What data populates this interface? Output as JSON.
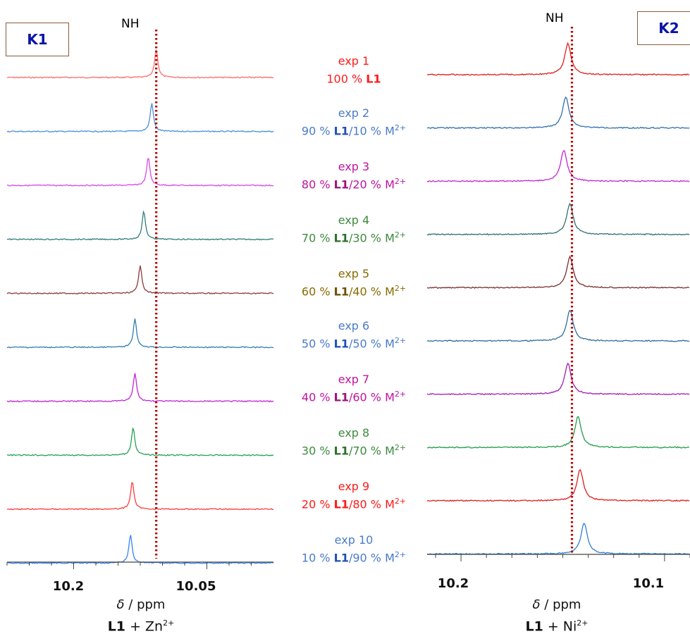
{
  "chart_data": [
    {
      "type": "line",
      "panel": "K1",
      "peak_label": "NH",
      "xlabel_symbol": "δ",
      "xlabel_unit": " / ppm",
      "caption_ligand": "L1",
      "caption_rest": " + Zn",
      "caption_sup": "2+",
      "x_axis_reversed": true,
      "xlim": [
        10.27,
        9.97
      ],
      "xticks": [
        10.2,
        10.05
      ],
      "xtick_labels": [
        "10.2",
        "10.05"
      ],
      "reference_line_x": 10.102,
      "series": [
        {
          "name": "exp 1",
          "peak_x": 10.102,
          "color": "#ff6b6b"
        },
        {
          "name": "exp 2",
          "peak_x": 10.107,
          "color": "#4a90d9"
        },
        {
          "name": "exp 3",
          "peak_x": 10.111,
          "color": "#d946ef"
        },
        {
          "name": "exp 4",
          "peak_x": 10.116,
          "color": "#2f7f7a"
        },
        {
          "name": "exp 5",
          "peak_x": 10.12,
          "color": "#8b3a3a"
        },
        {
          "name": "exp 6",
          "peak_x": 10.126,
          "color": "#2f7fae"
        },
        {
          "name": "exp 7",
          "peak_x": 10.126,
          "color": "#c026d3"
        },
        {
          "name": "exp 8",
          "peak_x": 10.128,
          "color": "#22a352"
        },
        {
          "name": "exp 9",
          "peak_x": 10.129,
          "color": "#ff3b3b"
        },
        {
          "name": "exp 10",
          "peak_x": 10.131,
          "color": "#3b82f6"
        }
      ]
    },
    {
      "type": "line",
      "panel": "K2",
      "peak_label": "NH",
      "xlabel_symbol": "δ",
      "xlabel_unit": " / ppm",
      "caption_ligand": "L1",
      "caption_rest": " + Ni",
      "caption_sup": "2+",
      "x_axis_reversed": true,
      "xlim": [
        10.21,
        10.085
      ],
      "xticks": [
        10.2,
        10.1
      ],
      "xtick_labels": [
        "10.2",
        "10.1"
      ],
      "reference_line_x": 10.143,
      "series": [
        {
          "name": "exp 1",
          "peak_x": 10.145,
          "color": "#e11d1d"
        },
        {
          "name": "exp 2",
          "peak_x": 10.146,
          "color": "#2f6fae"
        },
        {
          "name": "exp 3",
          "peak_x": 10.147,
          "color": "#c026d3"
        },
        {
          "name": "exp 4",
          "peak_x": 10.144,
          "color": "#2f6f73"
        },
        {
          "name": "exp 5",
          "peak_x": 10.144,
          "color": "#7a2e2e"
        },
        {
          "name": "exp 6",
          "peak_x": 10.144,
          "color": "#2f6f9a"
        },
        {
          "name": "exp 7",
          "peak_x": 10.145,
          "color": "#a21caf"
        },
        {
          "name": "exp 8",
          "peak_x": 10.14,
          "color": "#1f9d4a"
        },
        {
          "name": "exp 9",
          "peak_x": 10.139,
          "color": "#e11d1d"
        },
        {
          "name": "exp 10",
          "peak_x": 10.137,
          "color": "#2f7fd6"
        }
      ]
    }
  ],
  "experiments": [
    {
      "title": "exp 1",
      "pre": "100 % ",
      "ligand": "L1",
      "mid": "",
      "metal": "",
      "sup": "",
      "color": "#ff1a1a",
      "ligand_color": "#ff1a1a"
    },
    {
      "title": "exp 2",
      "pre": "90 % ",
      "ligand": "L1",
      "mid": "/10 % ",
      "metal": "M",
      "sup": "2+",
      "color": "#4a7bc8",
      "ligand_color": "#1f4fb5"
    },
    {
      "title": "exp 3",
      "pre": "80 % ",
      "ligand": "L1",
      "mid": "/20 % ",
      "metal": "M",
      "sup": "2+",
      "color": "#c0149e",
      "ligand_color": "#9b1079"
    },
    {
      "title": "exp 4",
      "pre": "70 % ",
      "ligand": "L1",
      "mid": "/30 % ",
      "metal": "M",
      "sup": "2+",
      "color": "#3e8a3e",
      "ligand_color": "#2a6e2a"
    },
    {
      "title": "exp 5",
      "pre": "60 % ",
      "ligand": "L1",
      "mid": "/40 % ",
      "metal": "M",
      "sup": "2+",
      "color": "#8a6a00",
      "ligand_color": "#6b4f00"
    },
    {
      "title": "exp 6",
      "pre": "50 % ",
      "ligand": "L1",
      "mid": "/50 % ",
      "metal": "M",
      "sup": "2+",
      "color": "#4a7bc8",
      "ligand_color": "#1f4fb5"
    },
    {
      "title": "exp 7",
      "pre": "40 % ",
      "ligand": "L1",
      "mid": "/60 % ",
      "metal": "M",
      "sup": "2+",
      "color": "#c0149e",
      "ligand_color": "#9b1079"
    },
    {
      "title": "exp 8",
      "pre": "30 % ",
      "ligand": "L1",
      "mid": "/70 % ",
      "metal": "M",
      "sup": "2+",
      "color": "#3e8a3e",
      "ligand_color": "#2a6e2a"
    },
    {
      "title": "exp 9",
      "pre": "20 % ",
      "ligand": "L1",
      "mid": "/80 % ",
      "metal": "M",
      "sup": "2+",
      "color": "#ff1a1a",
      "ligand_color": "#ff1a1a"
    },
    {
      "title": "exp 10",
      "pre": "10 % ",
      "ligand": "L1",
      "mid": "/90 % ",
      "metal": "M",
      "sup": "2+",
      "color": "#4a7bc8",
      "ligand_color": "#1f4fb5"
    }
  ],
  "reference_line_color": "#b00000"
}
